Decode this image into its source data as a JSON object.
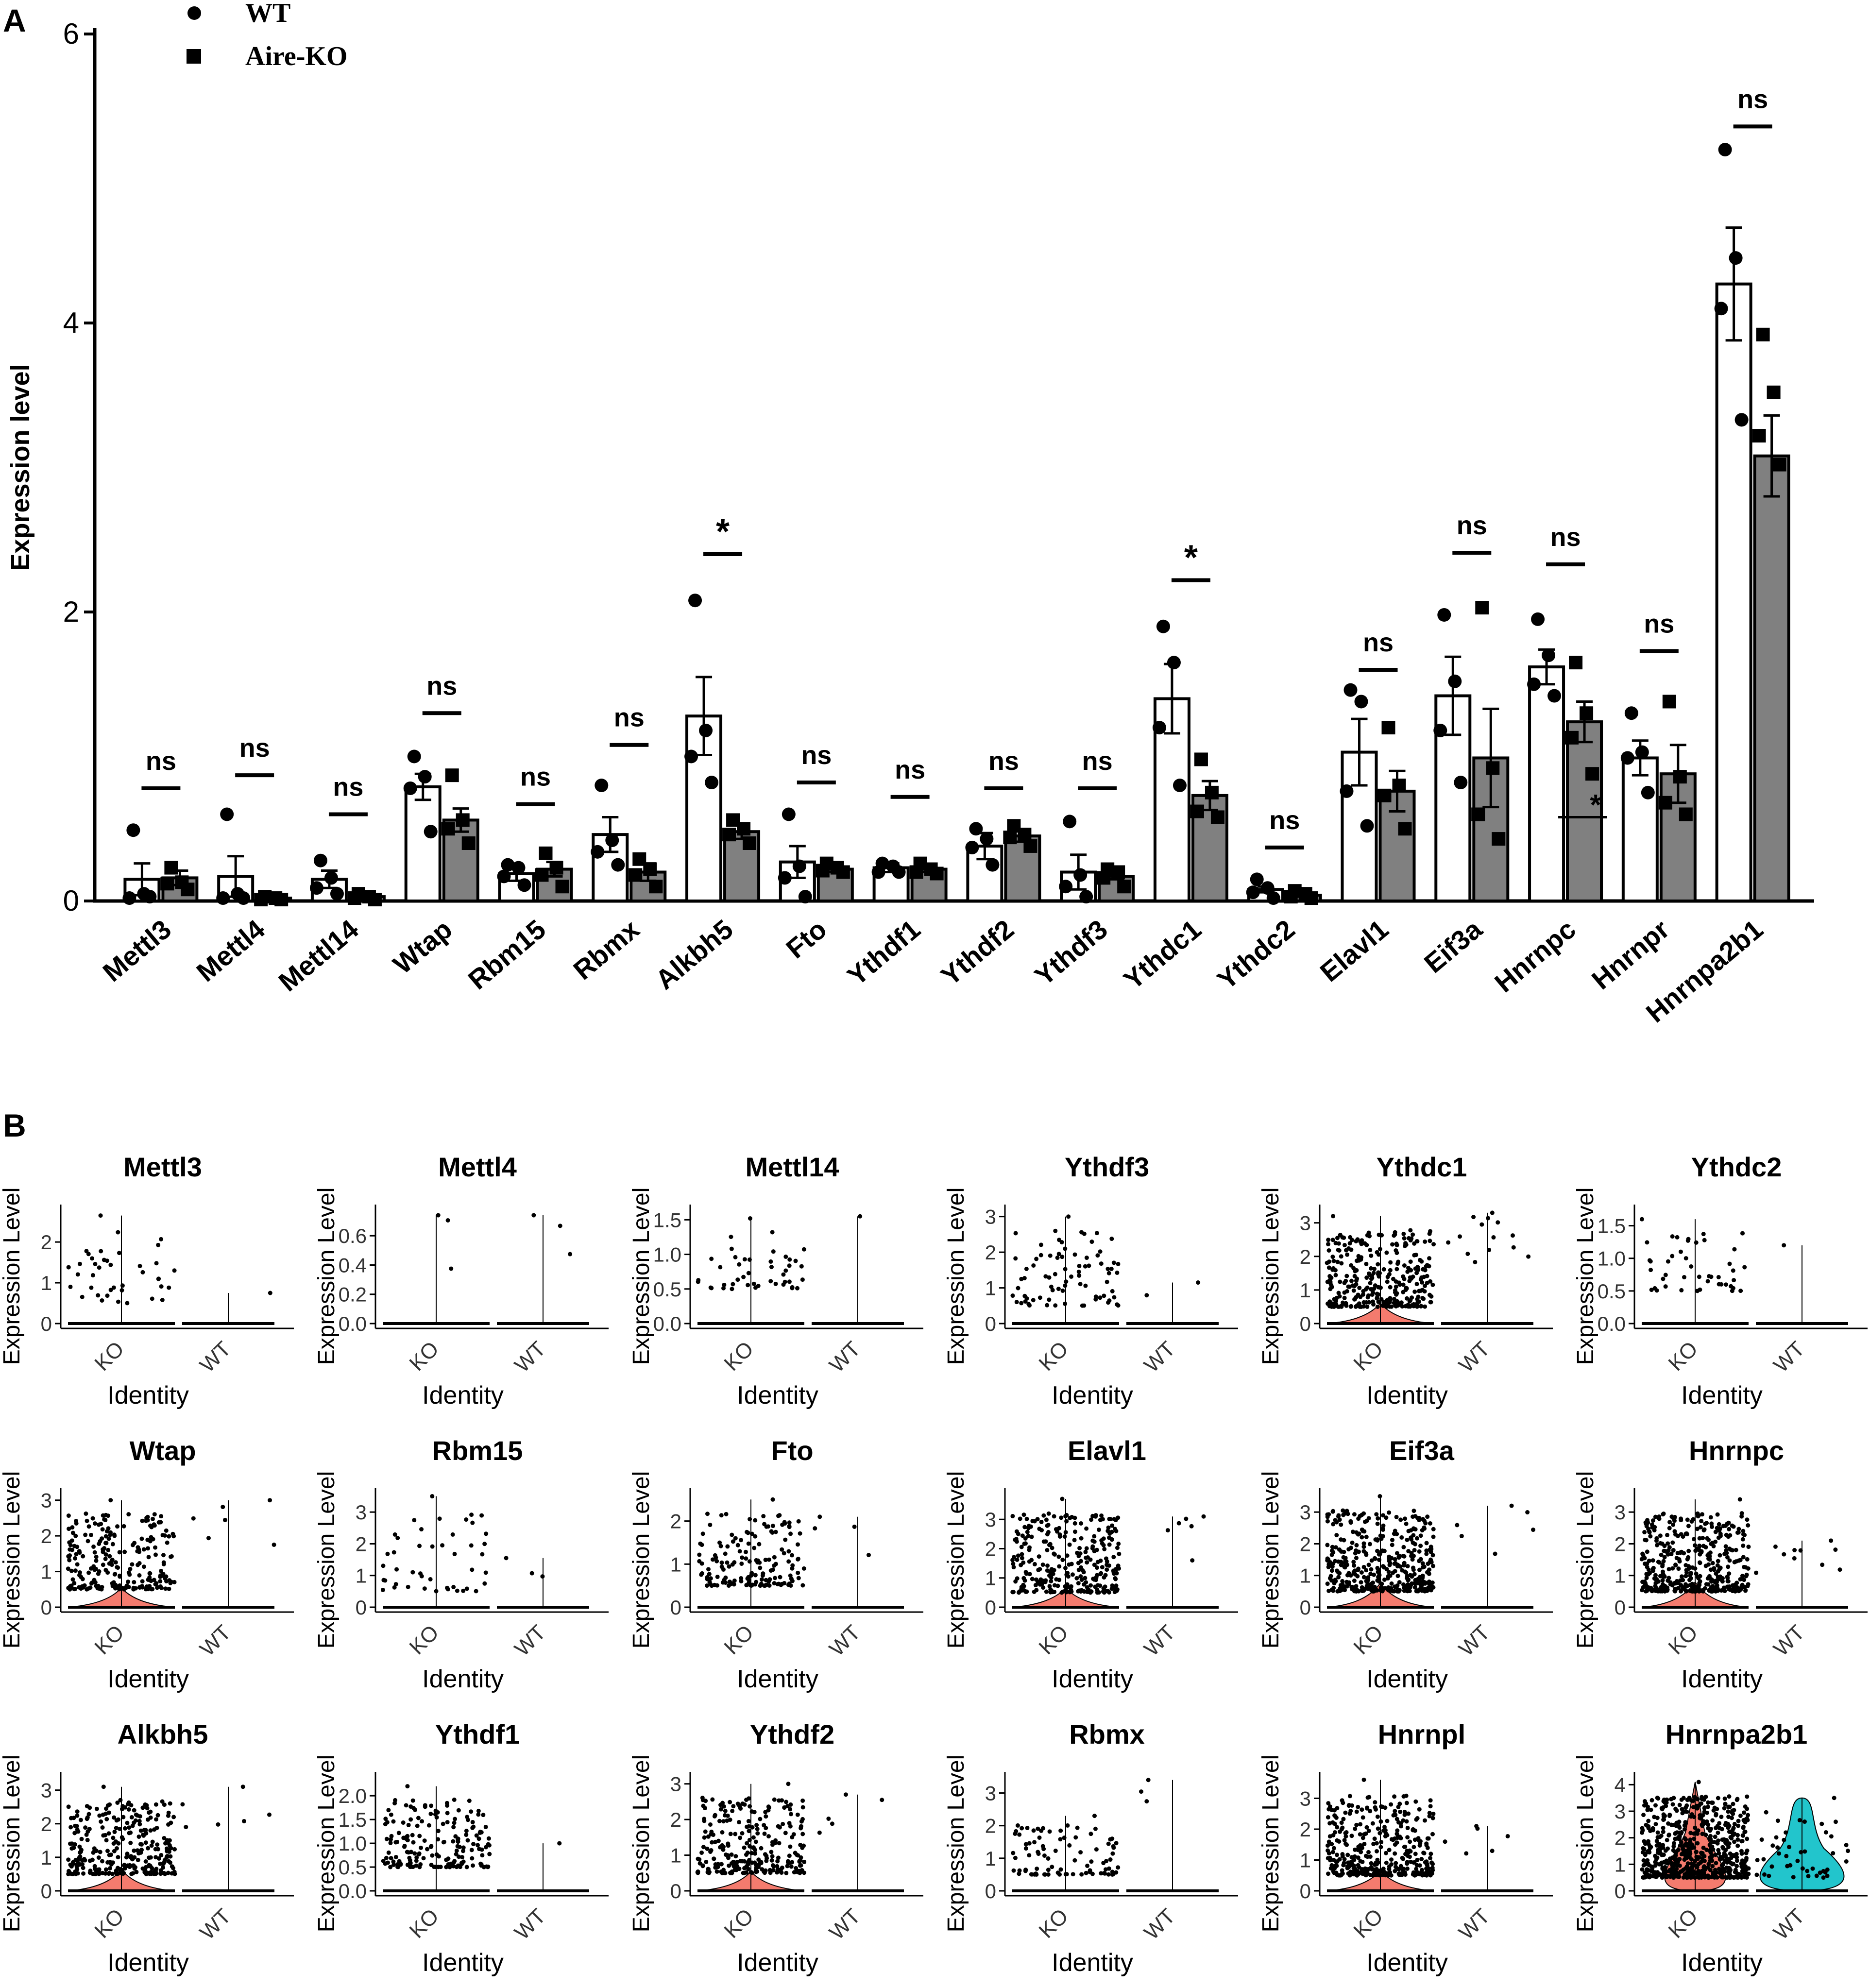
{
  "panels": {
    "a": "A",
    "b": "B"
  },
  "colors": {
    "wt_bar": "#ffffff",
    "ko_bar": "#808080",
    "ko_violin": "#f47b6e",
    "wt_violin": "#22c5cc",
    "ink": "#000000"
  },
  "chart_data": [
    {
      "type": "bar",
      "panel": "A",
      "title": "",
      "xlabel": "",
      "ylabel": "Expression level",
      "ylim": [
        0,
        6
      ],
      "yticks": [
        0,
        2,
        4,
        6
      ],
      "legend": {
        "position": "top-left",
        "entries": [
          {
            "name": "WT",
            "marker": "circle"
          },
          {
            "name": "Aire-KO",
            "marker": "square"
          }
        ]
      },
      "categories": [
        "Mettl3",
        "Mettl4",
        "Mettl14",
        "Wtap",
        "Rbm15",
        "Rbmx",
        "Alkbh5",
        "Fto",
        "Ythdf1",
        "Ythdf2",
        "Ythdf3",
        "Ythdc1",
        "Ythdc2",
        "Elavl1",
        "Eif3a",
        "Hnrnpc",
        "Hnrnpr",
        "Hnrnpa2b1"
      ],
      "series": [
        {
          "name": "WT",
          "fill": "white",
          "values": [
            0.15,
            0.17,
            0.15,
            0.79,
            0.19,
            0.46,
            1.28,
            0.27,
            0.23,
            0.38,
            0.2,
            1.4,
            0.08,
            1.03,
            1.42,
            1.62,
            0.99,
            4.27
          ],
          "errors": [
            0.11,
            0.14,
            0.06,
            0.09,
            0.05,
            0.12,
            0.27,
            0.11,
            0.03,
            0.09,
            0.12,
            0.24,
            0.02,
            0.23,
            0.27,
            0.12,
            0.12,
            0.39
          ],
          "points": [
            [
              0.49,
              0.05,
              0.02,
              0.03
            ],
            [
              0.6,
              0.05,
              0.02,
              0.02
            ],
            [
              0.28,
              0.16,
              0.09,
              0.05
            ],
            [
              1.0,
              0.86,
              0.78,
              0.48
            ],
            [
              0.25,
              0.23,
              0.17,
              0.11
            ],
            [
              0.8,
              0.42,
              0.34,
              0.25
            ],
            [
              2.08,
              1.18,
              1.0,
              0.82
            ],
            [
              0.6,
              0.24,
              0.16,
              0.03
            ],
            [
              0.26,
              0.24,
              0.2,
              0.2
            ],
            [
              0.5,
              0.43,
              0.37,
              0.25
            ],
            [
              0.55,
              0.18,
              0.1,
              0.03
            ],
            [
              1.9,
              1.65,
              1.2,
              0.8
            ],
            [
              0.15,
              0.09,
              0.06,
              0.02
            ],
            [
              1.46,
              1.38,
              0.76,
              0.52
            ],
            [
              1.98,
              1.52,
              1.18,
              0.82
            ],
            [
              1.95,
              1.7,
              1.5,
              1.42
            ],
            [
              1.3,
              1.03,
              0.99,
              0.75
            ],
            [
              5.2,
              4.45,
              4.1,
              3.33
            ]
          ]
        },
        {
          "name": "Aire-KO",
          "fill": "gray",
          "values": [
            0.16,
            0.02,
            0.03,
            0.56,
            0.22,
            0.2,
            0.48,
            0.22,
            0.22,
            0.45,
            0.17,
            0.73,
            0.04,
            0.76,
            0.99,
            1.24,
            0.88,
            3.08
          ],
          "errors": [
            0.05,
            0.01,
            0.01,
            0.08,
            0.05,
            0.06,
            0.05,
            0.02,
            0.02,
            0.04,
            0.02,
            0.1,
            0.01,
            0.14,
            0.34,
            0.14,
            0.2,
            0.28
          ],
          "points": [
            [
              0.23,
              0.13,
              0.12,
              0.08
            ],
            [
              0.03,
              0.02,
              0.01,
              0.01
            ],
            [
              0.05,
              0.03,
              0.02,
              0.01
            ],
            [
              0.87,
              0.56,
              0.5,
              0.4
            ],
            [
              0.33,
              0.23,
              0.18,
              0.1
            ],
            [
              0.29,
              0.22,
              0.18,
              0.1
            ],
            [
              0.56,
              0.5,
              0.46,
              0.4
            ],
            [
              0.26,
              0.23,
              0.21,
              0.2
            ],
            [
              0.26,
              0.22,
              0.2,
              0.19
            ],
            [
              0.52,
              0.46,
              0.44,
              0.38
            ],
            [
              0.22,
              0.2,
              0.16,
              0.1
            ],
            [
              0.98,
              0.75,
              0.62,
              0.58
            ],
            [
              0.07,
              0.05,
              0.03,
              0.02
            ],
            [
              1.2,
              0.8,
              0.73,
              0.5
            ],
            [
              2.03,
              0.92,
              0.6,
              0.43
            ],
            [
              1.65,
              1.3,
              1.13,
              0.88
            ],
            [
              1.38,
              0.86,
              0.68,
              0.6
            ],
            [
              3.92,
              3.52,
              3.22,
              3.02
            ]
          ]
        }
      ],
      "significance": [
        "ns",
        "ns",
        "ns",
        "ns",
        "ns",
        "ns",
        "*",
        "ns",
        "ns",
        "ns",
        "ns",
        "*",
        "ns",
        "ns",
        "ns",
        "ns",
        "ns",
        "ns"
      ],
      "sig_heights": [
        0.78,
        0.87,
        0.6,
        1.3,
        0.67,
        1.08,
        2.4,
        0.82,
        0.72,
        0.78,
        0.78,
        2.22,
        0.37,
        1.6,
        2.41,
        2.33,
        1.73,
        5.36
      ],
      "extra_annotation": {
        "category": "Hnrnpc",
        "text": "*",
        "y": 0.58
      }
    },
    {
      "type": "violin",
      "panel": "B",
      "xlabel": "Identity",
      "ylabel": "Expression Level",
      "groups": [
        "KO",
        "WT"
      ],
      "genes": [
        {
          "name": "Mettl3",
          "yticks": [
            "0",
            "1",
            "2"
          ],
          "ymax": 2.8,
          "ko_max": 2.65,
          "wt_max": 0.75,
          "ko_violin": 0,
          "wt_violin": 0,
          "ko_points": 40,
          "wt_points": 1
        },
        {
          "name": "Mettl4",
          "yticks": [
            "0.0",
            "0.2",
            "0.4",
            "0.6"
          ],
          "ymax": 0.78,
          "ko_max": 0.74,
          "wt_max": 0.74,
          "ko_violin": 0,
          "wt_violin": 0,
          "ko_points": 3,
          "wt_points": 3
        },
        {
          "name": "Mettl14",
          "yticks": [
            "0.0",
            "0.5",
            "1.0",
            "1.5"
          ],
          "ymax": 1.65,
          "ko_max": 1.52,
          "wt_max": 1.55,
          "ko_violin": 0,
          "wt_violin": 0,
          "ko_points": 45,
          "wt_points": 1
        },
        {
          "name": "Ythdf3",
          "yticks": [
            "0",
            "1",
            "2",
            "3"
          ],
          "ymax": 3.2,
          "ko_max": 3.0,
          "wt_max": 1.15,
          "ko_violin": 0,
          "wt_violin": 0,
          "ko_points": 80,
          "wt_points": 2
        },
        {
          "name": "Ythdc1",
          "yticks": [
            "0",
            "1",
            "2",
            "3"
          ],
          "ymax": 3.4,
          "ko_max": 3.2,
          "wt_max": 3.3,
          "ko_violin": 0.35,
          "wt_violin": 0,
          "ko_points": 320,
          "wt_points": 14
        },
        {
          "name": "Ythdc2",
          "yticks": [
            "0.0",
            "0.5",
            "1.0",
            "1.5"
          ],
          "ymax": 1.75,
          "ko_max": 1.6,
          "wt_max": 1.2,
          "ko_violin": 0,
          "wt_violin": 0,
          "ko_points": 45,
          "wt_points": 1
        },
        {
          "name": "Wtap",
          "yticks": [
            "0",
            "1",
            "2",
            "3"
          ],
          "ymax": 3.2,
          "ko_max": 3.0,
          "wt_max": 3.0,
          "ko_violin": 0.3,
          "wt_violin": 0,
          "ko_points": 240,
          "wt_points": 6
        },
        {
          "name": "Rbm15",
          "yticks": [
            "0",
            "1",
            "2",
            "3"
          ],
          "ymax": 3.6,
          "ko_max": 3.5,
          "wt_max": 1.55,
          "ko_violin": 0,
          "wt_violin": 0,
          "ko_points": 45,
          "wt_points": 3
        },
        {
          "name": "Fto",
          "yticks": [
            "0",
            "1",
            "2"
          ],
          "ymax": 2.65,
          "ko_max": 2.5,
          "wt_max": 2.1,
          "ko_violin": 0,
          "wt_violin": 0,
          "ko_points": 160,
          "wt_points": 4
        },
        {
          "name": "Elavl1",
          "yticks": [
            "0",
            "1",
            "2",
            "3"
          ],
          "ymax": 3.9,
          "ko_max": 3.7,
          "wt_max": 3.1,
          "ko_violin": 0.3,
          "wt_violin": 0,
          "ko_points": 300,
          "wt_points": 6
        },
        {
          "name": "Eif3a",
          "yticks": [
            "0",
            "1",
            "2",
            "3"
          ],
          "ymax": 3.6,
          "ko_max": 3.5,
          "wt_max": 3.2,
          "ko_violin": 0.55,
          "wt_violin": 0,
          "ko_points": 420,
          "wt_points": 6
        },
        {
          "name": "Hnrnpc",
          "yticks": [
            "0",
            "1",
            "2",
            "3"
          ],
          "ymax": 3.6,
          "ko_max": 3.4,
          "wt_max": 2.1,
          "ko_violin": 0.6,
          "wt_violin": 0,
          "ko_points": 420,
          "wt_points": 10
        },
        {
          "name": "Alkbh5",
          "yticks": [
            "0",
            "1",
            "2",
            "3"
          ],
          "ymax": 3.4,
          "ko_max": 3.1,
          "wt_max": 3.1,
          "ko_violin": 0.4,
          "wt_violin": 0,
          "ko_points": 300,
          "wt_points": 6
        },
        {
          "name": "Ythdf1",
          "yticks": [
            "0.0",
            "0.5",
            "1.0",
            "1.5",
            "2.0"
          ],
          "ymax": 2.4,
          "ko_max": 2.2,
          "wt_max": 1.0,
          "ko_violin": 0,
          "wt_violin": 0,
          "ko_points": 180,
          "wt_points": 1
        },
        {
          "name": "Ythdf2",
          "yticks": [
            "0",
            "1",
            "2",
            "3"
          ],
          "ymax": 3.2,
          "ko_max": 3.0,
          "wt_max": 2.7,
          "ko_violin": 0.3,
          "wt_violin": 0,
          "ko_points": 260,
          "wt_points": 5
        },
        {
          "name": "Rbmx",
          "yticks": [
            "0",
            "1",
            "2",
            "3"
          ],
          "ymax": 3.5,
          "ko_max": 2.3,
          "wt_max": 3.4,
          "ko_violin": 0,
          "wt_violin": 0,
          "ko_points": 90,
          "wt_points": 3
        },
        {
          "name": "Hnrnpl",
          "yticks": [
            "0",
            "1",
            "2",
            "3"
          ],
          "ymax": 3.7,
          "ko_max": 3.6,
          "wt_max": 2.1,
          "ko_violin": 0.35,
          "wt_violin": 0,
          "ko_points": 360,
          "wt_points": 6
        },
        {
          "name": "Hnrnpa2b1",
          "yticks": [
            "0",
            "1",
            "2",
            "3",
            "4"
          ],
          "ymax": 4.3,
          "ko_max": 4.1,
          "wt_max": 3.5,
          "ko_violin": 1.0,
          "wt_violin": 1.0,
          "ko_points": 650,
          "wt_points": 45
        }
      ]
    }
  ]
}
